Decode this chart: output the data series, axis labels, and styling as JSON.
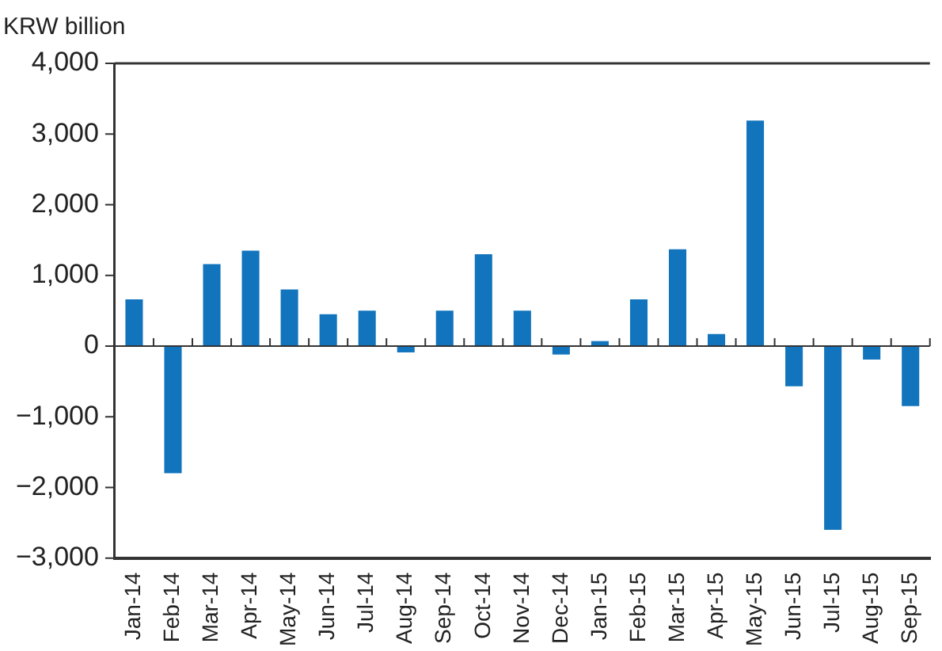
{
  "chart_data": {
    "type": "bar",
    "ylabel": "KRW billion",
    "categories": [
      "Jan-14",
      "Feb-14",
      "Mar-14",
      "Apr-14",
      "May-14",
      "Jun-14",
      "Jul-14",
      "Aug-14",
      "Sep-14",
      "Oct-14",
      "Nov-14",
      "Dec-14",
      "Jan-15",
      "Feb-15",
      "Mar-15",
      "Apr-15",
      "May-15",
      "Jun-15",
      "Jul-15",
      "Aug-15",
      "Sep-15"
    ],
    "values": [
      660,
      -1800,
      1160,
      1350,
      800,
      450,
      500,
      -90,
      500,
      1300,
      500,
      -120,
      70,
      660,
      1370,
      170,
      3190,
      -570,
      -2600,
      -190,
      -850
    ],
    "color": "#1174bd",
    "ylim": [
      -3000,
      4000
    ],
    "yticks": [
      {
        "value": -3000,
        "label": "−3,000"
      },
      {
        "value": -2000,
        "label": "−2,000"
      },
      {
        "value": -1000,
        "label": "−1,000"
      },
      0,
      {
        "value": 1000,
        "label": "1,000"
      },
      {
        "value": 2000,
        "label": "2,000"
      },
      {
        "value": 3000,
        "label": "3,000"
      },
      {
        "value": 4000,
        "label": "4,000"
      }
    ],
    "ref_lines": [
      {
        "axis": "y",
        "value": 0,
        "color": "#333333"
      }
    ],
    "grid": false,
    "legend": false
  }
}
